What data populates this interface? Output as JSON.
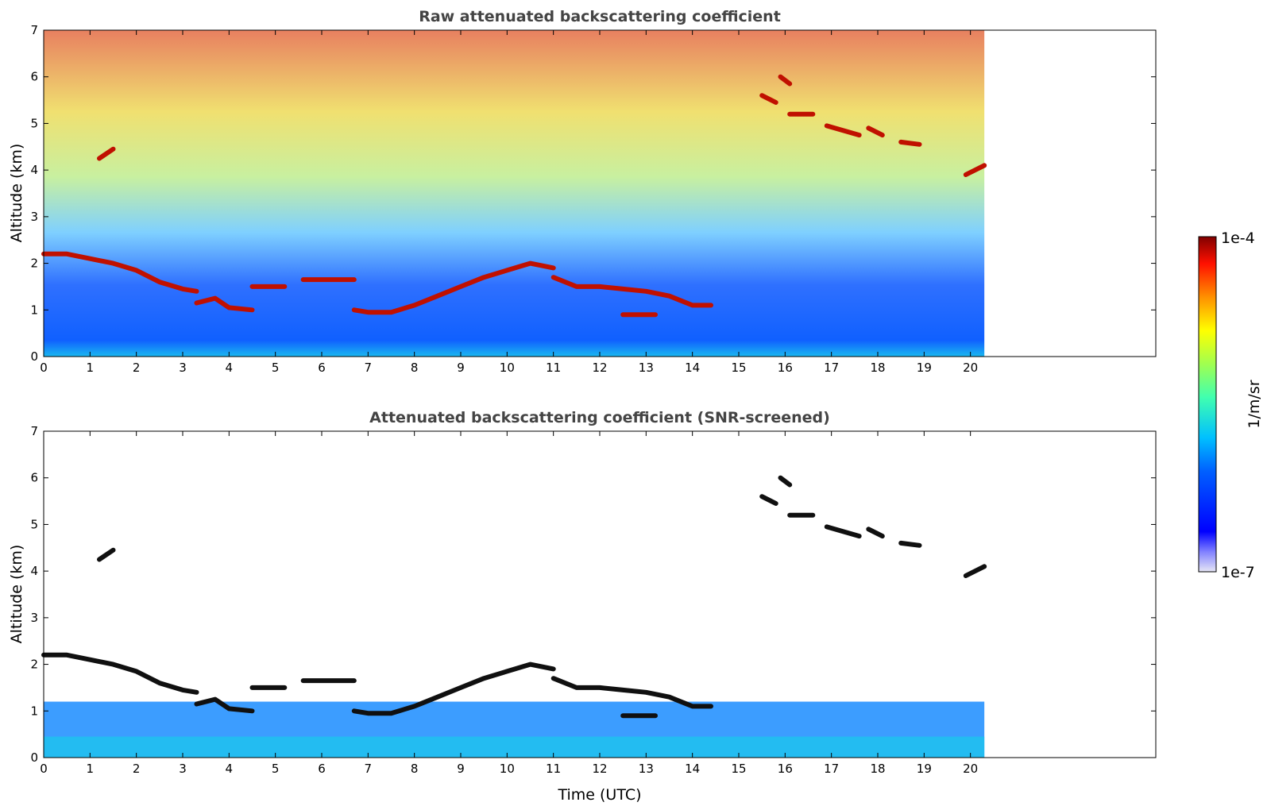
{
  "chart_data": [
    {
      "type": "heatmap",
      "title": "Raw attenuated backscattering coefficient",
      "xlabel": "",
      "ylabel": "Altitude (km)",
      "xlim": [
        0,
        24
      ],
      "ylim": [
        0,
        7
      ],
      "xticks": [
        "0",
        "1",
        "2",
        "3",
        "4",
        "5",
        "6",
        "7",
        "8",
        "9",
        "10",
        "11",
        "12",
        "13",
        "14",
        "15",
        "16",
        "17",
        "18",
        "19",
        "20"
      ],
      "yticks": [
        "0",
        "1",
        "2",
        "3",
        "4",
        "5",
        "6",
        "7"
      ],
      "data_end_time": 20.3,
      "cloud_layers": [
        {
          "x": [
            0,
            0.5,
            1,
            1.5,
            2,
            2.5,
            3,
            3.3
          ],
          "y": [
            2.2,
            2.2,
            2.1,
            2.0,
            1.85,
            1.6,
            1.45,
            1.4
          ]
        },
        {
          "x": [
            3.3,
            3.7,
            4.0,
            4.5
          ],
          "y": [
            1.15,
            1.25,
            1.05,
            1.0
          ]
        },
        {
          "x": [
            4.5,
            5.2
          ],
          "y": [
            1.5,
            1.5
          ]
        },
        {
          "x": [
            5.6,
            6.7
          ],
          "y": [
            1.65,
            1.65
          ]
        },
        {
          "x": [
            6.7,
            7,
            7.5,
            8,
            8.5,
            9,
            9.5,
            10,
            10.5,
            11
          ],
          "y": [
            1.0,
            0.95,
            0.95,
            1.1,
            1.3,
            1.5,
            1.7,
            1.85,
            2.0,
            1.9
          ]
        },
        {
          "x": [
            11,
            11.5,
            12,
            12.5,
            13,
            13.5,
            14,
            14.4
          ],
          "y": [
            1.7,
            1.5,
            1.5,
            1.45,
            1.4,
            1.3,
            1.1,
            1.1
          ]
        },
        {
          "x": [
            12.5,
            13.2
          ],
          "y": [
            0.9,
            0.9
          ]
        },
        {
          "x": [
            1.2,
            1.5
          ],
          "y": [
            4.25,
            4.45
          ]
        },
        {
          "x": [
            15.5,
            15.8
          ],
          "y": [
            5.6,
            5.45
          ]
        },
        {
          "x": [
            15.9,
            16.1
          ],
          "y": [
            6.0,
            5.85
          ]
        },
        {
          "x": [
            16.1,
            16.6
          ],
          "y": [
            5.2,
            5.2
          ]
        },
        {
          "x": [
            16.9,
            17.6
          ],
          "y": [
            4.95,
            4.75
          ]
        },
        {
          "x": [
            17.8,
            18.1
          ],
          "y": [
            4.9,
            4.75
          ]
        },
        {
          "x": [
            18.5,
            18.9
          ],
          "y": [
            4.6,
            4.55
          ]
        },
        {
          "x": [
            19.9,
            20.3
          ],
          "y": [
            3.9,
            4.1
          ]
        }
      ]
    },
    {
      "type": "heatmap",
      "title": "Attenuated backscattering coefficient (SNR-screened)",
      "xlabel": "Time (UTC)",
      "ylabel": "Altitude (km)",
      "xlim": [
        0,
        24
      ],
      "ylim": [
        0,
        7
      ],
      "xticks": [
        "0",
        "1",
        "2",
        "3",
        "4",
        "5",
        "6",
        "7",
        "8",
        "9",
        "10",
        "11",
        "12",
        "13",
        "14",
        "15",
        "16",
        "17",
        "18",
        "19",
        "20"
      ],
      "yticks": [
        "0",
        "1",
        "2",
        "3",
        "4",
        "5",
        "6",
        "7"
      ],
      "data_end_time": 20.3
    }
  ],
  "colorbar": {
    "max_label": "1e-4",
    "min_label": "1e-7",
    "unit_label": "1/m/sr",
    "colormap": "jet"
  }
}
